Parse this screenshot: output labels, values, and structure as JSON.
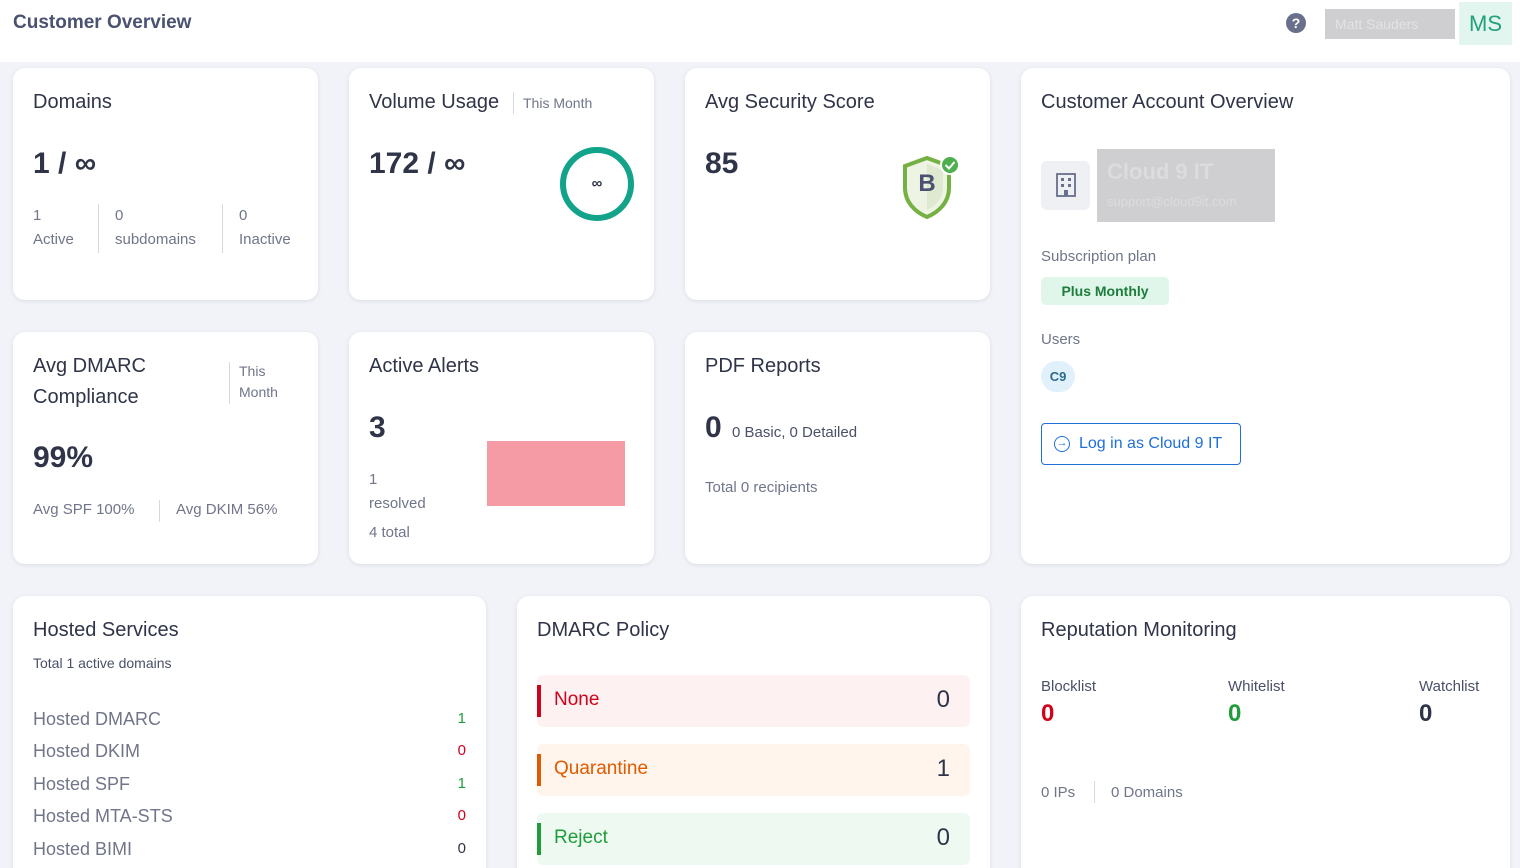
{
  "header": {
    "title": "Customer Overview",
    "help_glyph": "?",
    "user_name": "Matt Sauders",
    "avatar_initials": "MS"
  },
  "domains": {
    "title": "Domains",
    "value": "1 / ∞",
    "active_count": "1",
    "active_label": "Active",
    "subdomains_count": "0",
    "subdomains_label": "subdomains",
    "inactive_count": "0",
    "inactive_label": "Inactive"
  },
  "volume": {
    "title": "Volume Usage",
    "period": "This Month",
    "value": "172 / ∞",
    "ring_label": "∞"
  },
  "security": {
    "title": "Avg Security Score",
    "value": "85",
    "grade": "B"
  },
  "account": {
    "title": "Customer Account Overview",
    "name": "Cloud 9 IT",
    "email": "support@cloud9it.com",
    "subscription_label": "Subscription plan",
    "plan": "Plus Monthly",
    "users_label": "Users",
    "user_initials": "C9",
    "login_label": "Log in as Cloud 9 IT"
  },
  "compliance": {
    "title_line1": "Avg DMARC",
    "title_line2": "Compliance",
    "period_line1": "This",
    "period_line2": "Month",
    "value": "99%",
    "spf": "Avg SPF 100%",
    "dkim": "Avg DKIM 56%"
  },
  "alerts": {
    "title": "Active Alerts",
    "value": "3",
    "resolved_count": "1",
    "resolved_label": "resolved",
    "total": "4 total"
  },
  "pdf": {
    "title": "PDF Reports",
    "value": "0",
    "breakdown": "0 Basic, 0 Detailed",
    "recipients": "Total 0 recipients"
  },
  "hosted": {
    "title": "Hosted Services",
    "subtitle": "Total 1 active domains",
    "items": [
      {
        "label": "Hosted DMARC",
        "value": "1"
      },
      {
        "label": "Hosted DKIM",
        "value": "0"
      },
      {
        "label": "Hosted SPF",
        "value": "1"
      },
      {
        "label": "Hosted MTA-STS",
        "value": "0"
      },
      {
        "label": "Hosted BIMI",
        "value": "0"
      }
    ]
  },
  "policy": {
    "title": "DMARC Policy",
    "items": [
      {
        "label": "None",
        "value": "0"
      },
      {
        "label": "Quarantine",
        "value": "1"
      },
      {
        "label": "Reject",
        "value": "0"
      }
    ]
  },
  "reputation": {
    "title": "Reputation Monitoring",
    "blocklist_label": "Blocklist",
    "blocklist_value": "0",
    "whitelist_label": "Whitelist",
    "whitelist_value": "0",
    "watchlist_label": "Watchlist",
    "watchlist_value": "0",
    "ips": "0 IPs",
    "domains": "0 Domains"
  },
  "colors": {
    "accent": "#12a38a",
    "danger": "#d0021b",
    "success": "#1f9d3a",
    "warning": "#e05a00",
    "link": "#1e6fd9"
  }
}
